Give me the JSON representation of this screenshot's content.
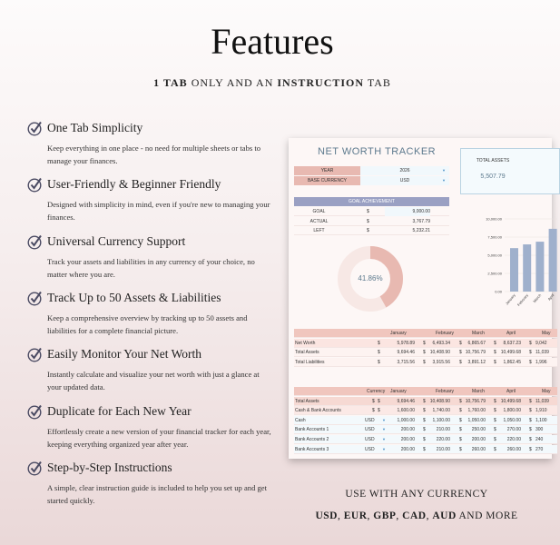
{
  "header": {
    "title": "Features",
    "subtitle_parts": [
      {
        "text": "1 TAB",
        "bold": true
      },
      {
        "text": " ONLY AND AN ",
        "bold": false
      },
      {
        "text": "INSTRUCTION",
        "bold": true
      },
      {
        "text": " TAB",
        "bold": false
      }
    ]
  },
  "features": [
    {
      "title": "One Tab Simplicity",
      "desc": "Keep everything in one place - no need for multiple sheets or tabs to manage your finances."
    },
    {
      "title": "User-Friendly & Beginner Friendly",
      "desc": "Designed with simplicity in mind, even if you're new to managing your finances."
    },
    {
      "title": "Universal Currency Support",
      "desc": "Track your assets and liabilities in any currency of your choice, no matter where you are."
    },
    {
      "title": "Track Up to 50 Assets & Liabilities",
      "desc": "Keep a comprehensive overview by tracking up to 50 assets and liabilities for a complete financial picture."
    },
    {
      "title": "Easily Monitor Your Net Worth",
      "desc": "Instantly calculate and visualize your net worth with just a glance at your updated data."
    },
    {
      "title": "Duplicate for Each New Year",
      "desc": "Effortlessly create a new version of your financial tracker for each year, keeping everything organized year after year."
    },
    {
      "title": "Step-by-Step Instructions",
      "desc": "A simple, clear instruction guide is included to help you set up and get started quickly."
    }
  ],
  "footer": {
    "currency_line": "USE WITH ANY CURRENCY",
    "currencies": [
      "USD",
      "EUR",
      "GBP",
      "CAD",
      "AUD"
    ],
    "more": "AND MORE"
  },
  "sheet": {
    "title": "NET WORTH TRACKER",
    "year_label": "YEAR",
    "year_value": "2026",
    "currency_label": "BASE CURRENCY",
    "currency_value": "USD",
    "total_assets_label": "TOTAL ASSETS",
    "total_assets_value": "5,507.79",
    "goal": {
      "header": "GOAL ACHIEVEMENT",
      "rows": [
        {
          "label": "GOAL",
          "sym": "$",
          "value": "9,000.00"
        },
        {
          "label": "ACTUAL",
          "sym": "$",
          "value": "3,767.79"
        },
        {
          "label": "LEFT",
          "sym": "$",
          "value": "5,232.21"
        }
      ],
      "percent_label": "41.86%",
      "percent": 41.86
    },
    "colors": {
      "accent": "#9aa0c3",
      "pink": "#e8b9b1",
      "title": "#5d7a8e",
      "bar": "#9fb0cc"
    },
    "chart_data": {
      "type": "bar",
      "categories": [
        "January",
        "February",
        "March",
        "April"
      ],
      "values": [
        5978.89,
        6493.34,
        6865.67,
        8637.23
      ],
      "yticks": [
        "10,000.00",
        "7,500.00",
        "5,000.00",
        "2,500.00",
        "0.00"
      ],
      "ylim": [
        0,
        10000
      ],
      "grid": true
    },
    "summary": {
      "months": [
        "January",
        "February",
        "March",
        "April",
        "May"
      ],
      "rows": [
        {
          "label": "Net Worth",
          "values": [
            "5,978.89",
            "6,493.34",
            "6,865.67",
            "8,637.23",
            "9,042"
          ]
        },
        {
          "label": "Total Assets",
          "values": [
            "9,694.46",
            "10,408.90",
            "10,756.79",
            "10,499.68",
            "11,039"
          ]
        },
        {
          "label": "Total Liabilities",
          "values": [
            "3,715.56",
            "3,915.56",
            "3,891.12",
            "1,862.45",
            "1,996"
          ]
        }
      ]
    },
    "assets": {
      "currency_header": "Currency",
      "months": [
        "January",
        "February",
        "March",
        "April",
        "May"
      ],
      "rows": [
        {
          "label": "Total Assets",
          "cur": "$",
          "values": [
            "9,694.46",
            "10,408.90",
            "10,756.79",
            "10,499.68",
            "11,039"
          ]
        },
        {
          "label": "Cash & Bank Accounts",
          "cur": "$",
          "values": [
            "1,600.00",
            "1,740.00",
            "1,760.00",
            "1,800.00",
            "1,910"
          ]
        },
        {
          "label": "Cash",
          "cur": "USD",
          "values": [
            "1,000.00",
            "1,100.00",
            "1,050.00",
            "1,050.00",
            "1,100"
          ]
        },
        {
          "label": "Bank Accounts 1",
          "cur": "USD",
          "values": [
            "200.00",
            "210.00",
            "250.00",
            "270.00",
            "300"
          ]
        },
        {
          "label": "Bank Accounts 2",
          "cur": "USD",
          "values": [
            "200.00",
            "220.00",
            "200.00",
            "220.00",
            "240"
          ]
        },
        {
          "label": "Bank Accounts 3",
          "cur": "USD",
          "values": [
            "200.00",
            "210.00",
            "260.00",
            "260.00",
            "270"
          ]
        }
      ]
    }
  }
}
